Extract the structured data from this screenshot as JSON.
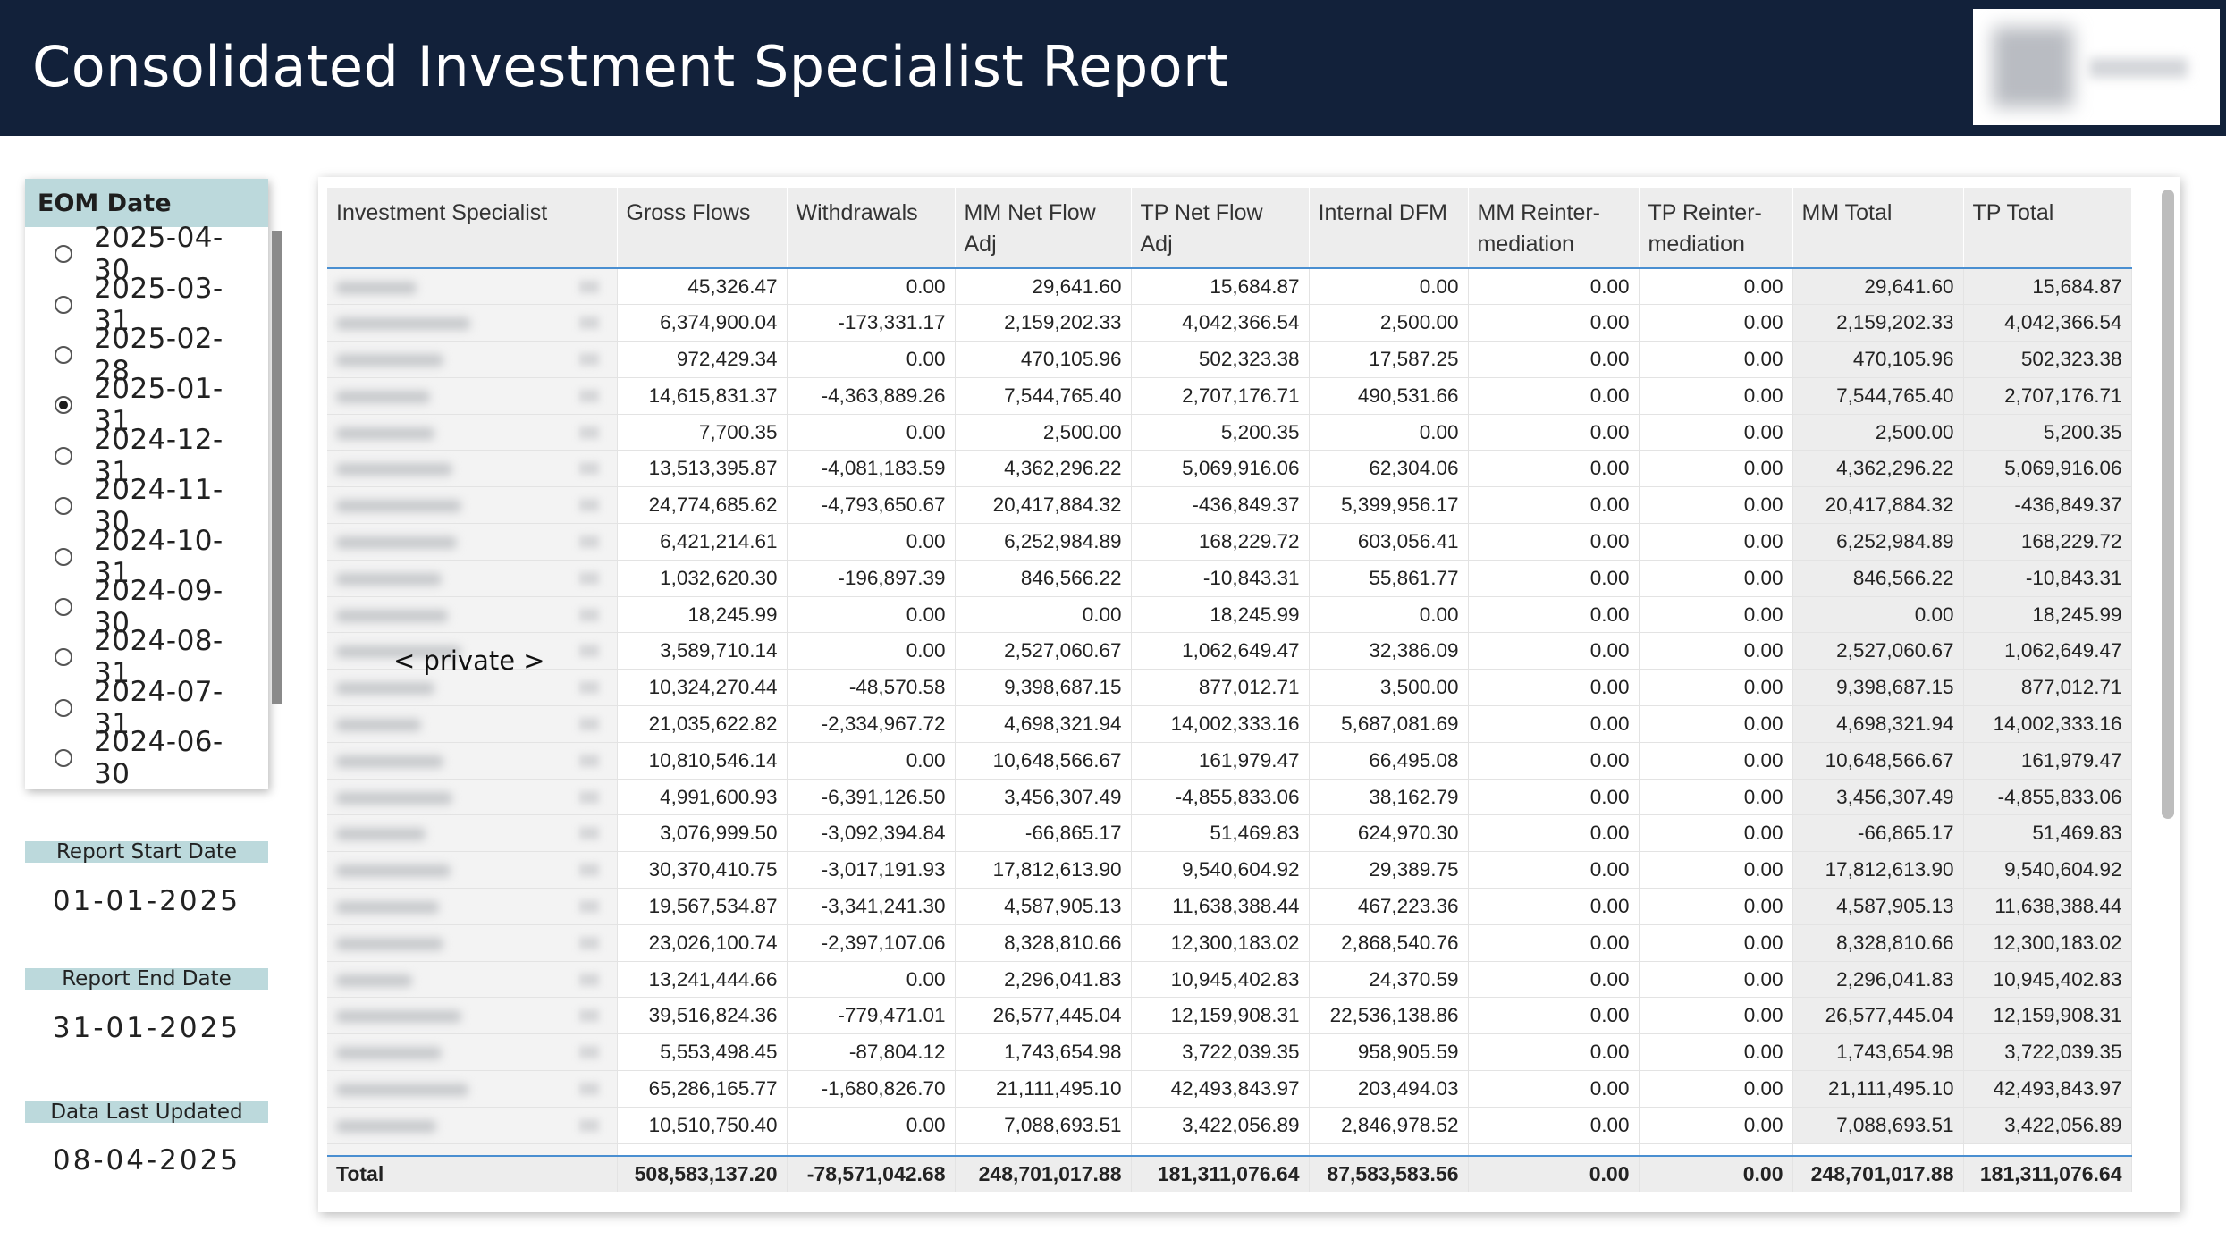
{
  "header": {
    "title": "Consolidated Investment Specialist Report"
  },
  "eom_slicer": {
    "title": "EOM Date",
    "selected": "2025-01-31",
    "options": [
      "2025-04-30",
      "2025-03-31",
      "2025-02-28",
      "2025-01-31",
      "2024-12-31",
      "2024-11-30",
      "2024-10-31",
      "2024-09-30",
      "2024-08-31",
      "2024-07-31",
      "2024-06-30"
    ]
  },
  "report_start": {
    "label": "Report Start Date",
    "value": "01-01-2025"
  },
  "report_end": {
    "label": "Report End Date",
    "value": "31-01-2025"
  },
  "last_updated": {
    "label": "Data Last Updated",
    "value": "08-04-2025"
  },
  "private_label": "< private >",
  "table": {
    "columns": [
      "Investment Specialist",
      "Gross Flows",
      "Withdrawals",
      "MM Net Flow Adj",
      "TP Net Flow Adj",
      "Internal DFM",
      "MM Reinter-mediation",
      "TP Reinter-mediation",
      "MM Total",
      "TP Total"
    ],
    "rows": [
      [
        "45,326.47",
        "0.00",
        "29,641.60",
        "15,684.87",
        "0.00",
        "0.00",
        "0.00",
        "29,641.60",
        "15,684.87"
      ],
      [
        "6,374,900.04",
        "-173,331.17",
        "2,159,202.33",
        "4,042,366.54",
        "2,500.00",
        "0.00",
        "0.00",
        "2,159,202.33",
        "4,042,366.54"
      ],
      [
        "972,429.34",
        "0.00",
        "470,105.96",
        "502,323.38",
        "17,587.25",
        "0.00",
        "0.00",
        "470,105.96",
        "502,323.38"
      ],
      [
        "14,615,831.37",
        "-4,363,889.26",
        "7,544,765.40",
        "2,707,176.71",
        "490,531.66",
        "0.00",
        "0.00",
        "7,544,765.40",
        "2,707,176.71"
      ],
      [
        "7,700.35",
        "0.00",
        "2,500.00",
        "5,200.35",
        "0.00",
        "0.00",
        "0.00",
        "2,500.00",
        "5,200.35"
      ],
      [
        "13,513,395.87",
        "-4,081,183.59",
        "4,362,296.22",
        "5,069,916.06",
        "62,304.06",
        "0.00",
        "0.00",
        "4,362,296.22",
        "5,069,916.06"
      ],
      [
        "24,774,685.62",
        "-4,793,650.67",
        "20,417,884.32",
        "-436,849.37",
        "5,399,956.17",
        "0.00",
        "0.00",
        "20,417,884.32",
        "-436,849.37"
      ],
      [
        "6,421,214.61",
        "0.00",
        "6,252,984.89",
        "168,229.72",
        "603,056.41",
        "0.00",
        "0.00",
        "6,252,984.89",
        "168,229.72"
      ],
      [
        "1,032,620.30",
        "-196,897.39",
        "846,566.22",
        "-10,843.31",
        "55,861.77",
        "0.00",
        "0.00",
        "846,566.22",
        "-10,843.31"
      ],
      [
        "18,245.99",
        "0.00",
        "0.00",
        "18,245.99",
        "0.00",
        "0.00",
        "0.00",
        "0.00",
        "18,245.99"
      ],
      [
        "3,589,710.14",
        "0.00",
        "2,527,060.67",
        "1,062,649.47",
        "32,386.09",
        "0.00",
        "0.00",
        "2,527,060.67",
        "1,062,649.47"
      ],
      [
        "10,324,270.44",
        "-48,570.58",
        "9,398,687.15",
        "877,012.71",
        "3,500.00",
        "0.00",
        "0.00",
        "9,398,687.15",
        "877,012.71"
      ],
      [
        "21,035,622.82",
        "-2,334,967.72",
        "4,698,321.94",
        "14,002,333.16",
        "5,687,081.69",
        "0.00",
        "0.00",
        "4,698,321.94",
        "14,002,333.16"
      ],
      [
        "10,810,546.14",
        "0.00",
        "10,648,566.67",
        "161,979.47",
        "66,495.08",
        "0.00",
        "0.00",
        "10,648,566.67",
        "161,979.47"
      ],
      [
        "4,991,600.93",
        "-6,391,126.50",
        "3,456,307.49",
        "-4,855,833.06",
        "38,162.79",
        "0.00",
        "0.00",
        "3,456,307.49",
        "-4,855,833.06"
      ],
      [
        "3,076,999.50",
        "-3,092,394.84",
        "-66,865.17",
        "51,469.83",
        "624,970.30",
        "0.00",
        "0.00",
        "-66,865.17",
        "51,469.83"
      ],
      [
        "30,370,410.75",
        "-3,017,191.93",
        "17,812,613.90",
        "9,540,604.92",
        "29,389.75",
        "0.00",
        "0.00",
        "17,812,613.90",
        "9,540,604.92"
      ],
      [
        "19,567,534.87",
        "-3,341,241.30",
        "4,587,905.13",
        "11,638,388.44",
        "467,223.36",
        "0.00",
        "0.00",
        "4,587,905.13",
        "11,638,388.44"
      ],
      [
        "23,026,100.74",
        "-2,397,107.06",
        "8,328,810.66",
        "12,300,183.02",
        "2,868,540.76",
        "0.00",
        "0.00",
        "8,328,810.66",
        "12,300,183.02"
      ],
      [
        "13,241,444.66",
        "0.00",
        "2,296,041.83",
        "10,945,402.83",
        "24,370.59",
        "0.00",
        "0.00",
        "2,296,041.83",
        "10,945,402.83"
      ],
      [
        "39,516,824.36",
        "-779,471.01",
        "26,577,445.04",
        "12,159,908.31",
        "22,536,138.86",
        "0.00",
        "0.00",
        "26,577,445.04",
        "12,159,908.31"
      ],
      [
        "5,553,498.45",
        "-87,804.12",
        "1,743,654.98",
        "3,722,039.35",
        "958,905.59",
        "0.00",
        "0.00",
        "1,743,654.98",
        "3,722,039.35"
      ],
      [
        "65,286,165.77",
        "-1,680,826.70",
        "21,111,495.10",
        "42,493,843.97",
        "203,494.03",
        "0.00",
        "0.00",
        "21,111,495.10",
        "42,493,843.97"
      ],
      [
        "10,510,750.40",
        "0.00",
        "7,088,693.51",
        "3,422,056.89",
        "2,846,978.52",
        "0.00",
        "0.00",
        "7,088,693.51",
        "3,422,056.89"
      ]
    ],
    "total": [
      "Total",
      "508,583,137.20",
      "-78,571,042.68",
      "248,701,017.88",
      "181,311,076.64",
      "87,583,583.56",
      "0.00",
      "0.00",
      "248,701,017.88",
      "181,311,076.64"
    ]
  }
}
